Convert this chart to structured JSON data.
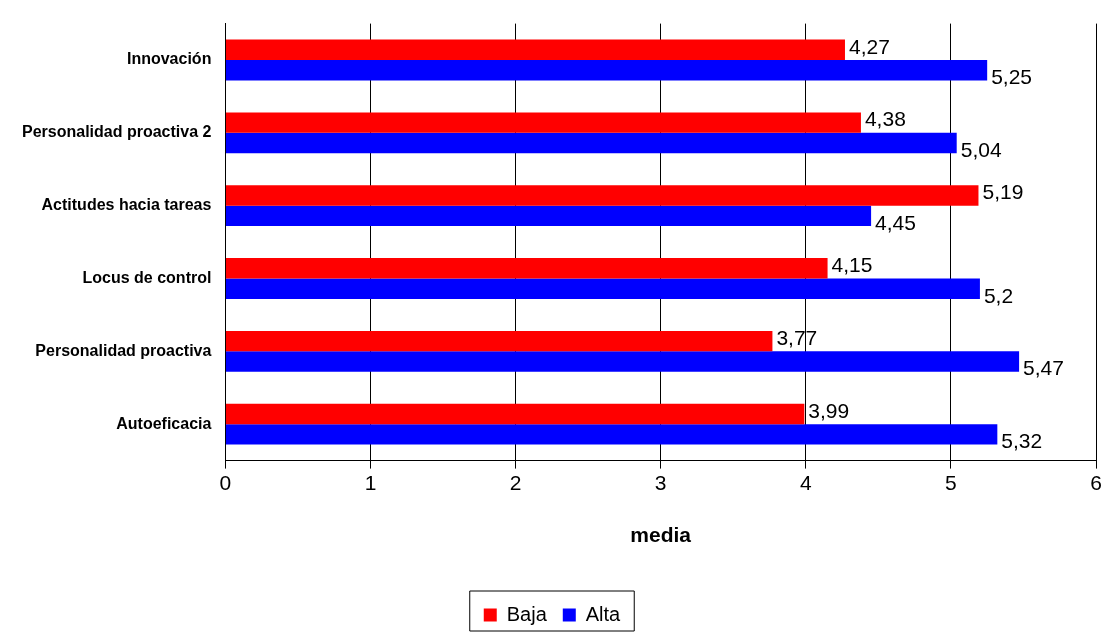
{
  "chart_data": {
    "type": "bar",
    "orientation": "horizontal",
    "xlabel": "media",
    "categories": [
      "Innovación",
      "Personalidad proactiva 2",
      "Actitudes hacia tareas",
      "Locus de control",
      "Personalidad proactiva",
      "Autoeficacia"
    ],
    "series": [
      {
        "name": "Baja",
        "color": "#ff0000",
        "values": [
          4.27,
          4.38,
          5.19,
          4.15,
          3.77,
          3.99
        ],
        "value_labels": [
          "4,27",
          "4,38",
          "5,19",
          "4,15",
          "3,77",
          "3,99"
        ]
      },
      {
        "name": "Alta",
        "color": "#0000ff",
        "values": [
          5.25,
          5.04,
          4.45,
          5.2,
          5.47,
          5.32
        ],
        "value_labels": [
          "5,25",
          "5,04",
          "4,45",
          "5,2",
          "5,47",
          "5,32"
        ]
      }
    ],
    "xlim": [
      0,
      6
    ],
    "xticks": [
      0,
      1,
      2,
      3,
      4,
      5,
      6
    ],
    "grid": "x",
    "legend": "bottom"
  }
}
